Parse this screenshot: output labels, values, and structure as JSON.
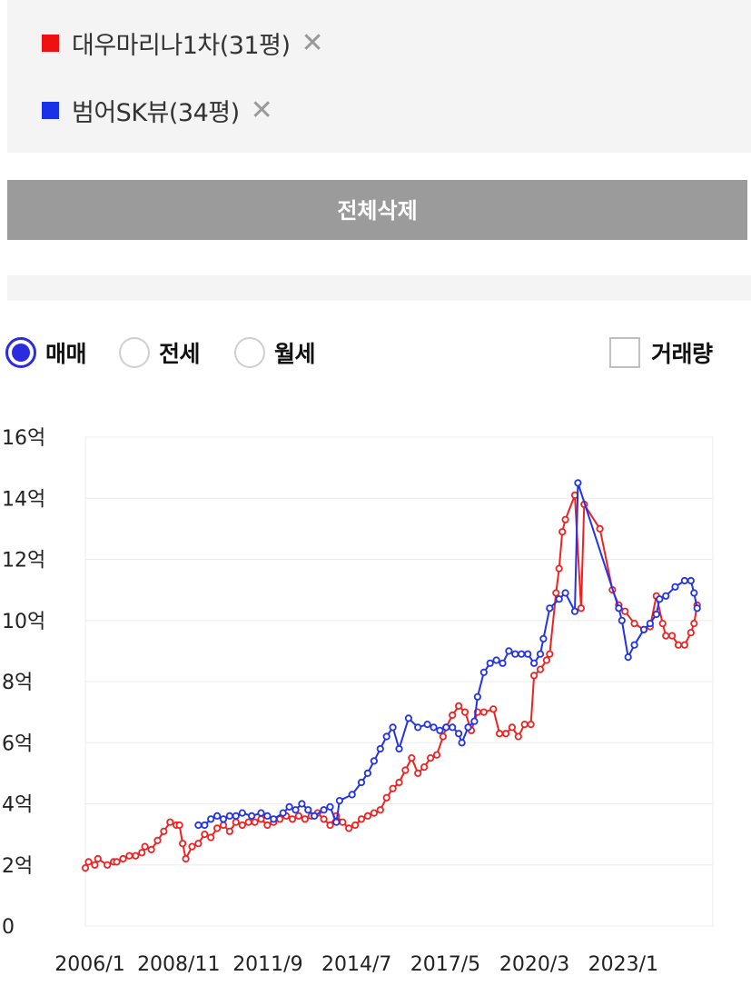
{
  "compare": {
    "items": [
      {
        "label": "대우마리나1차(31평)",
        "color": "#ee1111",
        "remove": "✕"
      },
      {
        "label": "범어SK뷰(34평)",
        "color": "#1a2fe8",
        "remove": "✕"
      }
    ],
    "delete_all_label": "전체삭제"
  },
  "options": {
    "radios": [
      {
        "label": "매매",
        "selected": true
      },
      {
        "label": "전세",
        "selected": false
      },
      {
        "label": "월세",
        "selected": false
      }
    ],
    "volume_label": "거래량",
    "volume_checked": false
  },
  "chart_data": {
    "type": "line",
    "x_start": 2006.0,
    "x_end": 2026.0,
    "x_tick_labels": [
      "2006/1",
      "2008/11",
      "2011/9",
      "2014/7",
      "2017/5",
      "2020/3",
      "2023/1"
    ],
    "x_tick_values": [
      2006.0,
      2008.83,
      2011.67,
      2014.5,
      2017.33,
      2020.17,
      2023.0
    ],
    "y_tick_labels": [
      "0",
      "2억",
      "4억",
      "6억",
      "8억",
      "10억",
      "12억",
      "14억",
      "16억"
    ],
    "y_tick_values": [
      0,
      2,
      4,
      6,
      8,
      10,
      12,
      14,
      16
    ],
    "ylim": [
      0,
      16
    ],
    "y_unit": "억",
    "grid": "horizontal",
    "series": [
      {
        "name": "대우마리나1차(31평)",
        "color": "#ee2222",
        "points": [
          [
            2006.0,
            1.9
          ],
          [
            2006.1,
            2.1
          ],
          [
            2006.3,
            2.0
          ],
          [
            2006.4,
            2.2
          ],
          [
            2006.7,
            2.0
          ],
          [
            2006.9,
            2.1
          ],
          [
            2007.0,
            2.1
          ],
          [
            2007.2,
            2.2
          ],
          [
            2007.4,
            2.3
          ],
          [
            2007.6,
            2.3
          ],
          [
            2007.8,
            2.4
          ],
          [
            2007.9,
            2.6
          ],
          [
            2008.1,
            2.5
          ],
          [
            2008.3,
            2.8
          ],
          [
            2008.5,
            3.1
          ],
          [
            2008.7,
            3.4
          ],
          [
            2008.9,
            3.3
          ],
          [
            2009.0,
            3.3
          ],
          [
            2009.1,
            2.7
          ],
          [
            2009.2,
            2.2
          ],
          [
            2009.4,
            2.6
          ],
          [
            2009.6,
            2.7
          ],
          [
            2009.8,
            3.0
          ],
          [
            2010.0,
            2.9
          ],
          [
            2010.2,
            3.2
          ],
          [
            2010.4,
            3.3
          ],
          [
            2010.6,
            3.1
          ],
          [
            2010.8,
            3.4
          ],
          [
            2011.0,
            3.3
          ],
          [
            2011.2,
            3.4
          ],
          [
            2011.4,
            3.4
          ],
          [
            2011.6,
            3.5
          ],
          [
            2011.8,
            3.3
          ],
          [
            2012.0,
            3.4
          ],
          [
            2012.2,
            3.5
          ],
          [
            2012.4,
            3.6
          ],
          [
            2012.6,
            3.5
          ],
          [
            2012.8,
            3.6
          ],
          [
            2013.0,
            3.5
          ],
          [
            2013.2,
            3.6
          ],
          [
            2013.4,
            3.7
          ],
          [
            2013.6,
            3.5
          ],
          [
            2013.8,
            3.3
          ],
          [
            2014.0,
            3.6
          ],
          [
            2014.2,
            3.4
          ],
          [
            2014.4,
            3.2
          ],
          [
            2014.6,
            3.3
          ],
          [
            2014.8,
            3.5
          ],
          [
            2015.0,
            3.6
          ],
          [
            2015.2,
            3.7
          ],
          [
            2015.4,
            3.8
          ],
          [
            2015.6,
            4.2
          ],
          [
            2015.8,
            4.5
          ],
          [
            2016.0,
            4.7
          ],
          [
            2016.2,
            5.1
          ],
          [
            2016.4,
            5.5
          ],
          [
            2016.6,
            5.0
          ],
          [
            2016.8,
            5.2
          ],
          [
            2017.0,
            5.5
          ],
          [
            2017.2,
            5.6
          ],
          [
            2017.4,
            6.2
          ],
          [
            2017.5,
            6.5
          ],
          [
            2017.7,
            6.9
          ],
          [
            2017.9,
            7.2
          ],
          [
            2018.1,
            7.0
          ],
          [
            2018.3,
            6.4
          ],
          [
            2018.5,
            7.0
          ],
          [
            2018.7,
            7.0
          ],
          [
            2019.0,
            7.1
          ],
          [
            2019.2,
            6.3
          ],
          [
            2019.4,
            6.3
          ],
          [
            2019.6,
            6.5
          ],
          [
            2019.8,
            6.2
          ],
          [
            2020.0,
            6.6
          ],
          [
            2020.2,
            6.6
          ],
          [
            2020.3,
            8.2
          ],
          [
            2020.5,
            8.4
          ],
          [
            2020.7,
            8.7
          ],
          [
            2020.8,
            8.9
          ],
          [
            2021.0,
            10.9
          ],
          [
            2021.1,
            11.7
          ],
          [
            2021.2,
            12.9
          ],
          [
            2021.3,
            13.3
          ],
          [
            2021.6,
            14.1
          ],
          [
            2021.8,
            10.4
          ],
          [
            2021.9,
            13.8
          ],
          [
            2022.4,
            13.0
          ],
          [
            2022.8,
            11.0
          ],
          [
            2023.0,
            10.5
          ],
          [
            2023.2,
            10.3
          ],
          [
            2023.5,
            9.9
          ],
          [
            2023.8,
            9.7
          ],
          [
            2024.0,
            9.8
          ],
          [
            2024.2,
            10.8
          ],
          [
            2024.4,
            9.9
          ],
          [
            2024.5,
            9.5
          ],
          [
            2024.7,
            9.5
          ],
          [
            2024.9,
            9.2
          ],
          [
            2025.1,
            9.2
          ],
          [
            2025.3,
            9.6
          ],
          [
            2025.4,
            9.9
          ],
          [
            2025.5,
            10.5
          ]
        ]
      },
      {
        "name": "범어SK뷰(34평)",
        "color": "#2233e6",
        "points": [
          [
            2009.6,
            3.3
          ],
          [
            2009.8,
            3.3
          ],
          [
            2010.0,
            3.5
          ],
          [
            2010.2,
            3.6
          ],
          [
            2010.4,
            3.5
          ],
          [
            2010.6,
            3.6
          ],
          [
            2010.8,
            3.6
          ],
          [
            2011.0,
            3.7
          ],
          [
            2011.3,
            3.6
          ],
          [
            2011.6,
            3.7
          ],
          [
            2011.8,
            3.6
          ],
          [
            2012.0,
            3.5
          ],
          [
            2012.3,
            3.7
          ],
          [
            2012.5,
            3.9
          ],
          [
            2012.7,
            3.8
          ],
          [
            2012.9,
            4.0
          ],
          [
            2013.1,
            3.8
          ],
          [
            2013.3,
            3.6
          ],
          [
            2013.6,
            3.8
          ],
          [
            2013.8,
            3.9
          ],
          [
            2014.0,
            3.4
          ],
          [
            2014.1,
            4.1
          ],
          [
            2014.5,
            4.3
          ],
          [
            2014.8,
            4.7
          ],
          [
            2015.0,
            5.0
          ],
          [
            2015.2,
            5.4
          ],
          [
            2015.4,
            5.8
          ],
          [
            2015.6,
            6.2
          ],
          [
            2015.8,
            6.5
          ],
          [
            2016.0,
            5.8
          ],
          [
            2016.3,
            6.8
          ],
          [
            2016.6,
            6.5
          ],
          [
            2016.9,
            6.6
          ],
          [
            2017.1,
            6.5
          ],
          [
            2017.3,
            6.4
          ],
          [
            2017.5,
            6.5
          ],
          [
            2017.7,
            6.5
          ],
          [
            2017.9,
            6.3
          ],
          [
            2018.0,
            6.0
          ],
          [
            2018.2,
            6.5
          ],
          [
            2018.4,
            6.7
          ],
          [
            2018.5,
            7.5
          ],
          [
            2018.7,
            8.3
          ],
          [
            2018.9,
            8.6
          ],
          [
            2019.1,
            8.7
          ],
          [
            2019.3,
            8.6
          ],
          [
            2019.5,
            9.0
          ],
          [
            2019.7,
            8.9
          ],
          [
            2019.9,
            8.9
          ],
          [
            2020.1,
            8.9
          ],
          [
            2020.3,
            8.6
          ],
          [
            2020.5,
            8.9
          ],
          [
            2020.6,
            9.4
          ],
          [
            2020.8,
            10.4
          ],
          [
            2021.1,
            10.7
          ],
          [
            2021.3,
            10.9
          ],
          [
            2021.6,
            10.3
          ],
          [
            2021.7,
            14.5
          ],
          [
            2023.0,
            10.4
          ],
          [
            2023.1,
            10.0
          ],
          [
            2023.3,
            8.8
          ],
          [
            2023.5,
            9.2
          ],
          [
            2023.8,
            9.7
          ],
          [
            2024.0,
            9.9
          ],
          [
            2024.2,
            10.2
          ],
          [
            2024.3,
            10.7
          ],
          [
            2024.5,
            10.8
          ],
          [
            2024.8,
            11.1
          ],
          [
            2025.1,
            11.3
          ],
          [
            2025.3,
            11.3
          ],
          [
            2025.4,
            10.9
          ],
          [
            2025.5,
            10.4
          ]
        ]
      }
    ]
  }
}
